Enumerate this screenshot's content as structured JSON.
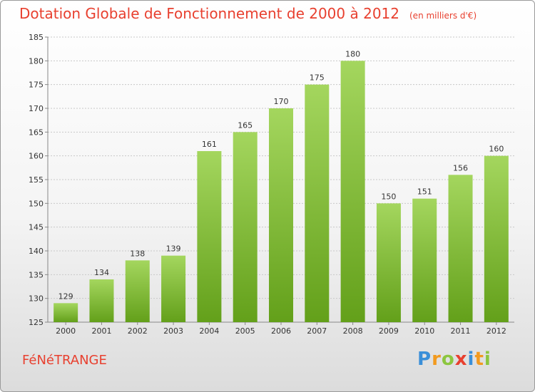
{
  "title": "Dotation Globale de Fonctionnement de 2000 à 2012",
  "unit_label": "(en milliers d'€)",
  "commune": "FéNéTRANGE",
  "logo": {
    "text": "Proxiti",
    "letters": [
      {
        "ch": "P",
        "color": "#3a8fd8"
      },
      {
        "ch": "r",
        "color": "#f29a1f"
      },
      {
        "ch": "o",
        "color": "#8cc63f"
      },
      {
        "ch": "x",
        "color": "#e8402f"
      },
      {
        "ch": "i",
        "color": "#3a8fd8"
      },
      {
        "ch": "t",
        "color": "#f29a1f"
      },
      {
        "ch": "i",
        "color": "#8cc63f"
      }
    ]
  },
  "colors": {
    "accent": "#e8402f",
    "bar_light": "#a4d65e",
    "bar_dark": "#63a01a",
    "grid": "#c8c8c8"
  },
  "chart_data": {
    "type": "bar",
    "categories": [
      "2000",
      "2001",
      "2002",
      "2003",
      "2004",
      "2005",
      "2006",
      "2007",
      "2008",
      "2009",
      "2010",
      "2011",
      "2012"
    ],
    "values": [
      129,
      134,
      138,
      139,
      161,
      165,
      170,
      175,
      180,
      150,
      151,
      156,
      160
    ],
    "ylim": [
      125,
      185
    ],
    "yticks": [
      125,
      130,
      135,
      140,
      145,
      150,
      155,
      160,
      165,
      170,
      175,
      180,
      185
    ],
    "grid": true,
    "data_labels": true
  }
}
